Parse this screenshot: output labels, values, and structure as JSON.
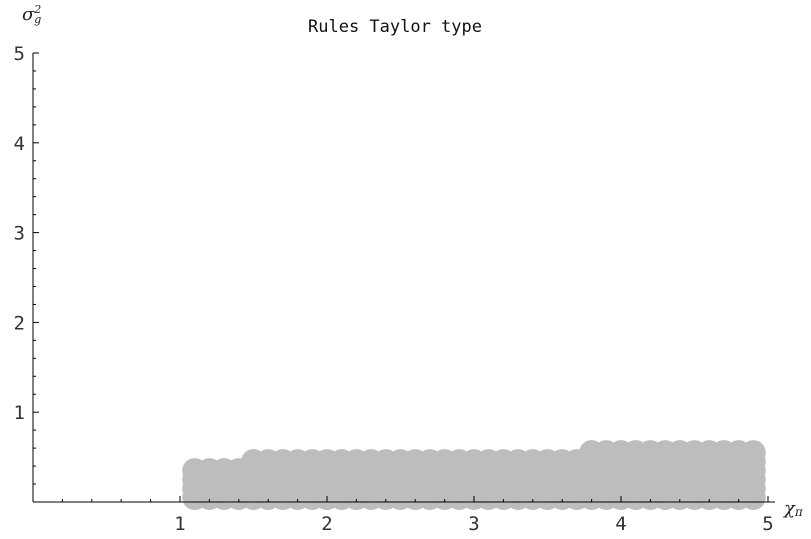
{
  "chart_data": {
    "type": "scatter",
    "title": "Rules Taylor type",
    "xlabel": "χπ",
    "ylabel": "σg²",
    "xlim": [
      0,
      5
    ],
    "ylim": [
      0,
      5
    ],
    "x_ticks": [
      "1",
      "2",
      "3",
      "4",
      "5"
    ],
    "y_ticks": [
      "1",
      "2",
      "3",
      "4",
      "5"
    ],
    "grid": false,
    "point_color": "#bdbdbd",
    "regions": [
      {
        "x_start": 1.1,
        "x_end": 1.4,
        "x_step": 0.1,
        "y_start": 0.05,
        "y_end": 0.35,
        "y_step": 0.1
      },
      {
        "x_start": 1.5,
        "x_end": 3.7,
        "x_step": 0.1,
        "y_start": 0.05,
        "y_end": 0.45,
        "y_step": 0.1
      },
      {
        "x_start": 3.8,
        "x_end": 4.9,
        "x_step": 0.1,
        "y_start": 0.05,
        "y_end": 0.55,
        "y_step": 0.1
      }
    ]
  }
}
